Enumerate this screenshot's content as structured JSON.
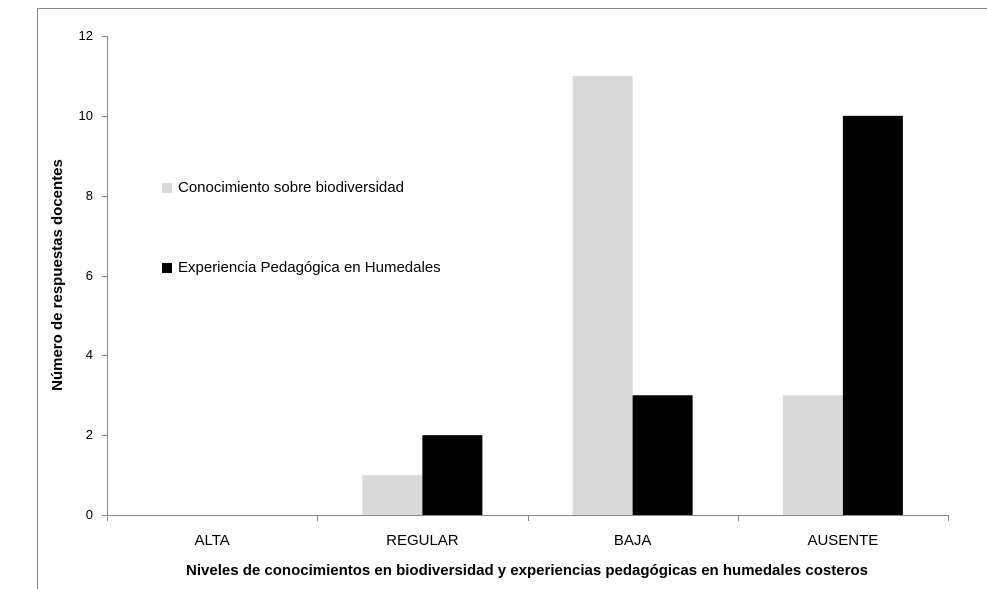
{
  "chart_data": {
    "type": "bar",
    "y_label": "Número de respuestas docentes",
    "x_label": "Niveles de conocimientos en biodiversidad y experiencias pedagógicas en humedales costeros",
    "categories": [
      "ALTA",
      "REGULAR",
      "BAJA",
      "AUSENTE"
    ],
    "series": [
      {
        "name": "Conocimiento sobre biodiversidad",
        "color": "#d9d9d9",
        "values": [
          0,
          1,
          11,
          3
        ]
      },
      {
        "name": "Experiencia Pedagógica en Humedales",
        "color": "#000000",
        "values": [
          0,
          2,
          3,
          10
        ]
      }
    ],
    "ylim": [
      0,
      12
    ],
    "yticks": [
      0,
      2,
      4,
      6,
      8,
      10,
      12
    ],
    "grid": false,
    "legend": "left"
  }
}
